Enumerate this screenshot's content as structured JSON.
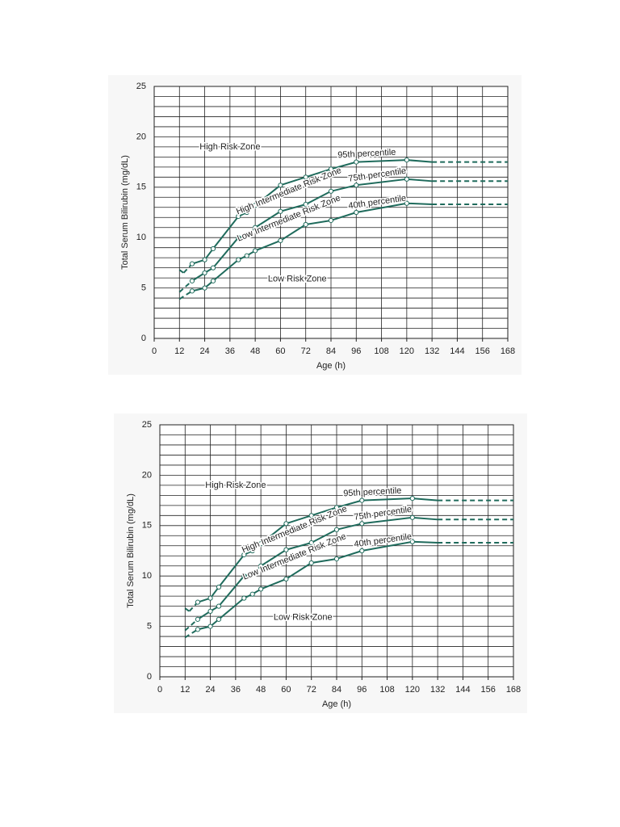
{
  "chart_data": [
    {
      "type": "line",
      "xlabel": "Age (h)",
      "ylabel": "Total Serum Bilirubin (mg/dL)",
      "xlim": [
        0,
        168
      ],
      "xticks": [
        0,
        12,
        24,
        36,
        48,
        60,
        72,
        84,
        96,
        108,
        120,
        132,
        144,
        156,
        168
      ],
      "ylim": [
        0,
        25
      ],
      "yticks": [
        0,
        5,
        10,
        15,
        20,
        25
      ],
      "ygrid": [
        1,
        2,
        3,
        4,
        6,
        7,
        8,
        9,
        11,
        12,
        13,
        14,
        16,
        17,
        18,
        19,
        21,
        22,
        23,
        24
      ],
      "grid": true,
      "solid_xrange": [
        18,
        132
      ],
      "annotations": [
        "High Risk Zone",
        "High Intermediate Risk Zone",
        "Low Intermediate Risk Zone",
        "Low Risk Zone"
      ],
      "series": [
        {
          "name": "95th percentile",
          "color": "#1f6b5c",
          "x": [
            12,
            14,
            18,
            24,
            28,
            40,
            44,
            48,
            60,
            72,
            84,
            96,
            120,
            132,
            168
          ],
          "values": [
            6.8,
            6.5,
            7.4,
            7.8,
            8.9,
            12.1,
            12.5,
            13.2,
            15.2,
            16.0,
            16.8,
            17.5,
            17.7,
            17.5,
            17.5
          ],
          "markers": [
            false,
            false,
            true,
            true,
            true,
            true,
            true,
            true,
            true,
            true,
            true,
            true,
            true,
            false,
            false
          ]
        },
        {
          "name": "75th percentile",
          "color": "#1f6b5c",
          "x": [
            12,
            18,
            24,
            28,
            40,
            44,
            48,
            60,
            72,
            84,
            96,
            120,
            132,
            168
          ],
          "values": [
            4.6,
            5.7,
            6.5,
            7.0,
            10.0,
            10.2,
            11.0,
            12.6,
            13.3,
            14.6,
            15.2,
            15.8,
            15.6,
            15.6
          ],
          "markers": [
            false,
            true,
            true,
            true,
            true,
            true,
            true,
            true,
            true,
            true,
            true,
            true,
            false,
            false
          ]
        },
        {
          "name": "40th percentile",
          "color": "#1f6b5c",
          "x": [
            12,
            18,
            24,
            28,
            40,
            44,
            48,
            60,
            72,
            84,
            96,
            120,
            132,
            168
          ],
          "values": [
            3.9,
            4.7,
            5.0,
            5.7,
            7.8,
            8.2,
            8.7,
            9.7,
            11.3,
            11.7,
            12.5,
            13.4,
            13.3,
            13.3
          ],
          "markers": [
            false,
            true,
            true,
            true,
            true,
            true,
            true,
            true,
            true,
            true,
            true,
            true,
            false,
            false
          ]
        }
      ]
    },
    {
      "type": "line",
      "xlabel": "Age (h)",
      "ylabel": "Total Serum Bilirubin (mg/dL)",
      "xlim": [
        0,
        168
      ],
      "xticks": [
        0,
        12,
        24,
        36,
        48,
        60,
        72,
        84,
        96,
        108,
        120,
        132,
        144,
        156,
        168
      ],
      "ylim": [
        0,
        25
      ],
      "yticks": [
        0,
        5,
        10,
        15,
        20,
        25
      ],
      "ygrid": [
        1,
        2,
        3,
        4,
        6,
        7,
        8,
        9,
        11,
        12,
        13,
        14,
        16,
        17,
        18,
        19,
        21,
        22,
        23,
        24
      ],
      "grid": true,
      "solid_xrange": [
        18,
        132
      ],
      "annotations": [
        "High Risk Zone",
        "High Intermediate Risk Zone",
        "Low Intermediate Risk Zone",
        "Low Risk Zone"
      ],
      "series": [
        {
          "name": "95th percentile",
          "color": "#1f6b5c",
          "x": [
            12,
            14,
            18,
            24,
            28,
            40,
            44,
            48,
            60,
            72,
            84,
            96,
            120,
            132,
            168
          ],
          "values": [
            6.8,
            6.5,
            7.4,
            7.8,
            8.9,
            12.1,
            12.5,
            13.2,
            15.2,
            16.0,
            16.8,
            17.5,
            17.7,
            17.5,
            17.5
          ],
          "markers": [
            false,
            false,
            true,
            true,
            true,
            true,
            true,
            true,
            true,
            true,
            true,
            true,
            true,
            false,
            false
          ]
        },
        {
          "name": "75th percentile",
          "color": "#1f6b5c",
          "x": [
            12,
            18,
            24,
            28,
            40,
            44,
            48,
            60,
            72,
            84,
            96,
            120,
            132,
            168
          ],
          "values": [
            4.6,
            5.7,
            6.5,
            7.0,
            10.0,
            10.2,
            11.0,
            12.6,
            13.3,
            14.6,
            15.2,
            15.8,
            15.6,
            15.6
          ],
          "markers": [
            false,
            true,
            true,
            true,
            true,
            true,
            true,
            true,
            true,
            true,
            true,
            true,
            false,
            false
          ]
        },
        {
          "name": "40th percentile",
          "color": "#1f6b5c",
          "x": [
            12,
            18,
            24,
            28,
            40,
            44,
            48,
            60,
            72,
            84,
            96,
            120,
            132,
            168
          ],
          "values": [
            3.9,
            4.7,
            5.0,
            5.7,
            7.8,
            8.2,
            8.7,
            9.7,
            11.3,
            11.7,
            12.5,
            13.4,
            13.3,
            13.3
          ],
          "markers": [
            false,
            true,
            true,
            true,
            true,
            true,
            true,
            true,
            true,
            true,
            true,
            true,
            false,
            false
          ]
        }
      ]
    }
  ]
}
